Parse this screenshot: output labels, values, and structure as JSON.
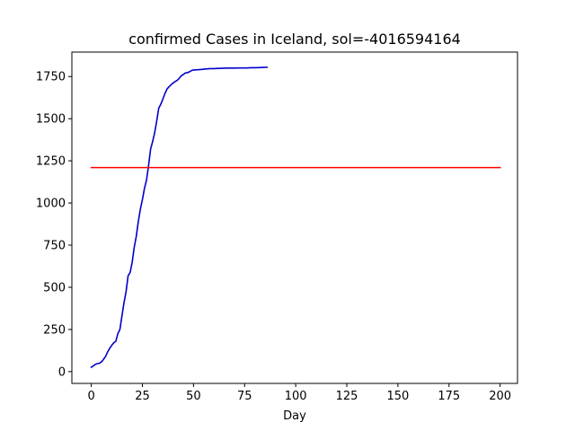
{
  "chart_data": {
    "type": "line",
    "title": "confirmed Cases in Iceland, sol=-4016594164",
    "xlabel": "Day",
    "ylabel": "",
    "xlim": [
      -9.5,
      208.5
    ],
    "ylim": [
      -70,
      1895
    ],
    "xticks": [
      0,
      25,
      50,
      75,
      100,
      125,
      150,
      175,
      200
    ],
    "yticks": [
      0,
      250,
      500,
      750,
      1000,
      1250,
      1500,
      1750
    ],
    "grid": false,
    "series": [
      {
        "color": "#0000cc",
        "x": [
          0,
          1,
          2,
          3,
          4,
          5,
          6,
          7,
          8,
          9,
          10,
          11,
          12,
          13,
          14,
          15,
          16,
          17,
          18,
          19,
          20,
          21,
          22,
          23,
          24,
          25,
          26,
          27,
          28,
          29,
          30,
          31,
          32,
          33,
          34,
          35,
          36,
          37,
          38,
          39,
          40,
          41,
          42,
          43,
          44,
          45,
          46,
          47,
          48,
          49,
          50,
          52,
          54,
          56,
          58,
          60,
          62,
          64,
          66,
          68,
          70,
          72,
          74,
          76,
          78,
          80,
          82,
          84,
          86
        ],
        "y": [
          26,
          34,
          43,
          47,
          50,
          58,
          73,
          90,
          117,
          138,
          156,
          171,
          180,
          225,
          250,
          330,
          409,
          473,
          568,
          588,
          648,
          737,
          802,
          890,
          963,
          1020,
          1086,
          1135,
          1220,
          1319,
          1364,
          1417,
          1486,
          1562,
          1586,
          1616,
          1648,
          1675,
          1689,
          1701,
          1711,
          1720,
          1727,
          1739,
          1754,
          1762,
          1771,
          1773,
          1778,
          1785,
          1789,
          1790,
          1792,
          1795,
          1797,
          1797,
          1798,
          1799,
          1800,
          1800,
          1800,
          1801,
          1801,
          1801,
          1802,
          1802,
          1803,
          1804,
          1805
        ]
      },
      {
        "color": "#ff0000",
        "x": [
          0,
          200
        ],
        "y": [
          1210,
          1210
        ]
      }
    ]
  }
}
